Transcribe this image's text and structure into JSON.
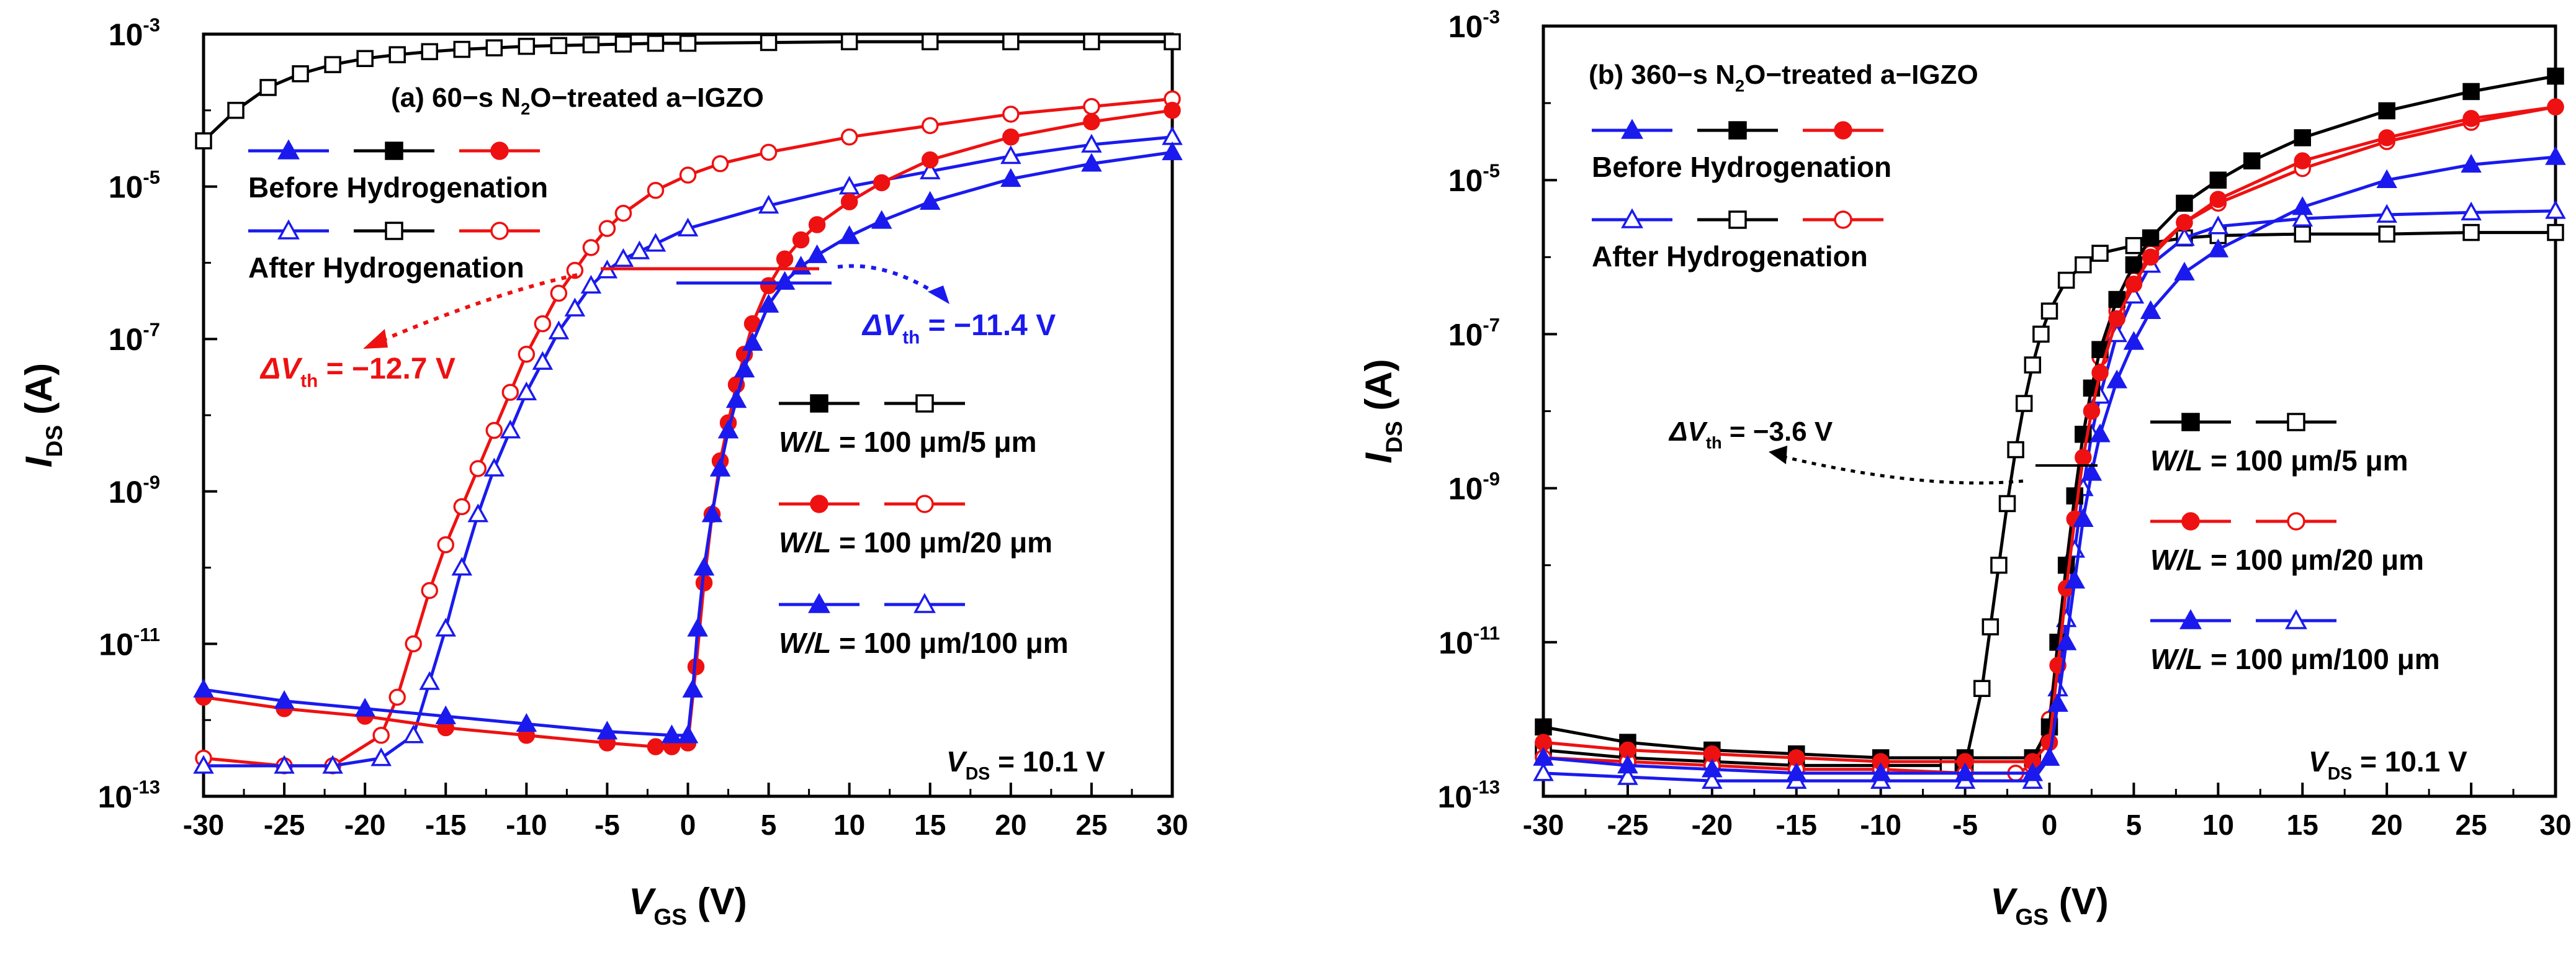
{
  "chart_data": [
    {
      "type": "line",
      "id": "a",
      "title": "(a) 60-s N₂O-treated a-IGZO",
      "title_parts": {
        "prefix": "(a) 60−s N",
        "sub": "2",
        "suffix": "O−treated  a−IGZO"
      },
      "xlabel": {
        "main": "V",
        "sub": "GS",
        "unit": " (V)"
      },
      "ylabel": {
        "main": "I",
        "sub": "DS",
        "unit": " (A)"
      },
      "xlim": [
        -30,
        30
      ],
      "ylim_log10": [
        -13,
        -3
      ],
      "xticks": [
        -30,
        -25,
        -20,
        -15,
        -10,
        -5,
        0,
        5,
        10,
        15,
        20,
        25,
        30
      ],
      "xtick_labels": [
        "-30",
        "-25",
        "-20",
        "-15",
        "-10",
        "-5",
        "0",
        "5",
        "10",
        "15",
        "20",
        "25",
        "30"
      ],
      "yticks": [
        {
          "base": "10",
          "exp": "-13",
          "value": -13
        },
        {
          "base": "10",
          "exp": "-11",
          "value": -11
        },
        {
          "base": "10",
          "exp": "-9",
          "value": -9
        },
        {
          "base": "10",
          "exp": "-7",
          "value": -7
        },
        {
          "base": "10",
          "exp": "-5",
          "value": -5
        },
        {
          "base": "10",
          "exp": "-3",
          "value": -3
        }
      ],
      "legend_before": "Before Hydrogenation",
      "legend_after": "After Hydrogenation",
      "wl_labels": [
        {
          "wl": "W/L",
          "rest": " = 100 μm/5 μm",
          "color": "#000000"
        },
        {
          "wl": "W/L",
          "rest": " = 100 μm/20 μm",
          "color": "#ee1111"
        },
        {
          "wl": "W/L",
          "rest": " = 100 μm/100 μm",
          "color": "#1a1aee"
        }
      ],
      "vds_label": {
        "main": "V",
        "sub": "DS",
        "rest": " = 10.1 V"
      },
      "annotations": [
        {
          "id": "dvth-red",
          "main": "ΔV",
          "sub": "th",
          "rest": " = −12.7 V",
          "color": "#ee1111"
        },
        {
          "id": "dvth-blue",
          "main": "ΔV",
          "sub": "th",
          "rest": " = −11.4 V",
          "color": "#1a1aee"
        }
      ],
      "series": [
        {
          "name": "100 μm/5 μm after",
          "color": "#000000",
          "marker": "square",
          "filled": false,
          "x": [
            -30,
            -28,
            -26,
            -24,
            -22,
            -20,
            -18,
            -16,
            -14,
            -12,
            -10,
            -8,
            -6,
            -4,
            -2,
            0,
            5,
            10,
            15,
            20,
            25,
            30
          ],
          "y_log10": [
            -4.4,
            -4.0,
            -3.7,
            -3.52,
            -3.4,
            -3.32,
            -3.27,
            -3.23,
            -3.2,
            -3.18,
            -3.16,
            -3.15,
            -3.14,
            -3.13,
            -3.12,
            -3.12,
            -3.11,
            -3.1,
            -3.1,
            -3.1,
            -3.1,
            -3.1
          ]
        },
        {
          "name": "100 μm/20 μm after",
          "color": "#ee1111",
          "marker": "circle",
          "filled": false,
          "x": [
            -30,
            -25,
            -22,
            -19,
            -18,
            -17,
            -16,
            -15,
            -14,
            -13,
            -12,
            -11,
            -10,
            -9,
            -8,
            -7,
            -6,
            -5,
            -4,
            -2,
            0,
            2,
            5,
            10,
            15,
            20,
            25,
            30
          ],
          "y_log10": [
            -12.5,
            -12.6,
            -12.6,
            -12.2,
            -11.7,
            -11.0,
            -10.3,
            -9.7,
            -9.2,
            -8.7,
            -8.2,
            -7.7,
            -7.2,
            -6.8,
            -6.4,
            -6.1,
            -5.8,
            -5.55,
            -5.35,
            -5.05,
            -4.85,
            -4.7,
            -4.55,
            -4.35,
            -4.2,
            -4.05,
            -3.95,
            -3.85
          ]
        },
        {
          "name": "100 μm/100 μm after",
          "color": "#1a1aee",
          "marker": "triangle",
          "filled": false,
          "x": [
            -30,
            -25,
            -22,
            -19,
            -17,
            -16,
            -15,
            -14,
            -13,
            -12,
            -11,
            -10,
            -9,
            -8,
            -7,
            -6,
            -5,
            -4,
            -3,
            -2,
            0,
            5,
            10,
            15,
            20,
            25,
            30
          ],
          "y_log10": [
            -12.6,
            -12.6,
            -12.6,
            -12.5,
            -12.2,
            -11.5,
            -10.8,
            -10.0,
            -9.3,
            -8.7,
            -8.2,
            -7.7,
            -7.3,
            -6.9,
            -6.6,
            -6.3,
            -6.1,
            -5.95,
            -5.85,
            -5.75,
            -5.55,
            -5.25,
            -5.0,
            -4.8,
            -4.6,
            -4.45,
            -4.35
          ]
        },
        {
          "name": "100 μm/5 μm before",
          "color": "#000000",
          "marker": "square",
          "filled": true,
          "x": [],
          "y_log10": []
        },
        {
          "name": "100 μm/20 μm before",
          "color": "#ee1111",
          "marker": "circle",
          "filled": true,
          "x": [
            -30,
            -25,
            -20,
            -15,
            -10,
            -5,
            -2,
            -1,
            0,
            0.5,
            1,
            1.5,
            2,
            2.5,
            3,
            3.5,
            4,
            5,
            6,
            7,
            8,
            10,
            12,
            15,
            20,
            25,
            30
          ],
          "y_log10": [
            -11.7,
            -11.85,
            -11.95,
            -12.1,
            -12.2,
            -12.3,
            -12.35,
            -12.35,
            -12.3,
            -11.3,
            -10.2,
            -9.3,
            -8.6,
            -8.1,
            -7.6,
            -7.2,
            -6.8,
            -6.3,
            -5.95,
            -5.7,
            -5.5,
            -5.2,
            -4.95,
            -4.65,
            -4.35,
            -4.15,
            -4.0
          ]
        },
        {
          "name": "100 μm/100 μm before",
          "color": "#1a1aee",
          "marker": "triangle",
          "filled": true,
          "x": [
            -30,
            -25,
            -20,
            -15,
            -10,
            -5,
            -1,
            0,
            0.3,
            0.6,
            1,
            1.5,
            2,
            2.5,
            3,
            3.5,
            4,
            5,
            6,
            7,
            8,
            10,
            12,
            15,
            20,
            25,
            30
          ],
          "y_log10": [
            -11.6,
            -11.75,
            -11.85,
            -11.95,
            -12.05,
            -12.15,
            -12.2,
            -12.2,
            -11.6,
            -10.8,
            -10.0,
            -9.3,
            -8.7,
            -8.2,
            -7.8,
            -7.4,
            -7.05,
            -6.55,
            -6.25,
            -6.05,
            -5.9,
            -5.65,
            -5.45,
            -5.2,
            -4.9,
            -4.7,
            -4.55
          ]
        }
      ]
    },
    {
      "type": "line",
      "id": "b",
      "title": "(b) 360-s N₂O-treated a-IGZO",
      "title_parts": {
        "prefix": "(b) 360−s N",
        "sub": "2",
        "suffix": "O−treated a−IGZO"
      },
      "xlabel": {
        "main": "V",
        "sub": "GS",
        "unit": " (V)"
      },
      "ylabel": {
        "main": "I",
        "sub": "DS",
        "unit": " (A)"
      },
      "xlim": [
        -30,
        30
      ],
      "ylim_log10": [
        -13,
        -3
      ],
      "xticks": [
        -30,
        -25,
        -20,
        -15,
        -10,
        -5,
        0,
        5,
        10,
        15,
        20,
        25,
        30
      ],
      "xtick_labels": [
        "-30",
        "-25",
        "-20",
        "-15",
        "-10",
        "-5",
        "0",
        "5",
        "10",
        "15",
        "20",
        "25",
        "30"
      ],
      "yticks": [
        {
          "base": "10",
          "exp": "-13",
          "value": -13
        },
        {
          "base": "10",
          "exp": "-11",
          "value": -11
        },
        {
          "base": "10",
          "exp": "-9",
          "value": -9
        },
        {
          "base": "10",
          "exp": "-7",
          "value": -7
        },
        {
          "base": "10",
          "exp": "-5",
          "value": -5
        },
        {
          "base": "10",
          "exp": "-3",
          "value": -3
        }
      ],
      "legend_before": "Before Hydrogenation",
      "legend_after": "After Hydrogenation",
      "wl_labels": [
        {
          "wl": "W/L",
          "rest": " = 100 μm/5 μm",
          "color": "#000000"
        },
        {
          "wl": "W/L",
          "rest": " = 100 μm/20 μm",
          "color": "#ee1111"
        },
        {
          "wl": "W/L",
          "rest": " = 100 μm/100 μm",
          "color": "#1a1aee"
        }
      ],
      "vds_label": {
        "main": "V",
        "sub": "DS",
        "rest": " = 10.1 V"
      },
      "annotations": [
        {
          "id": "dvth-black",
          "main": "ΔV",
          "sub": "th",
          "rest": " = −3.6 V",
          "color": "#000000"
        }
      ],
      "series": [
        {
          "name": "100 μm/5 μm after",
          "color": "#000000",
          "marker": "square",
          "filled": false,
          "x": [
            -30,
            -25,
            -20,
            -15,
            -10,
            -6,
            -5,
            -4,
            -3.5,
            -3,
            -2.5,
            -2,
            -1.5,
            -1,
            -0.5,
            0,
            1,
            2,
            3,
            5,
            8,
            10,
            15,
            20,
            25,
            30
          ],
          "y_log10": [
            -12.4,
            -12.5,
            -12.55,
            -12.6,
            -12.6,
            -12.6,
            -12.6,
            -11.6,
            -10.8,
            -10.0,
            -9.2,
            -8.5,
            -7.9,
            -7.4,
            -7.0,
            -6.7,
            -6.3,
            -6.1,
            -5.95,
            -5.85,
            -5.75,
            -5.72,
            -5.7,
            -5.7,
            -5.68,
            -5.68
          ]
        },
        {
          "name": "100 μm/20 μm after",
          "color": "#ee1111",
          "marker": "circle",
          "filled": false,
          "x": [
            -30,
            -25,
            -20,
            -15,
            -10,
            -5,
            -2,
            -1,
            0,
            0.5,
            1,
            1.5,
            2,
            2.5,
            3,
            4,
            5,
            6,
            8,
            10,
            15,
            20,
            25,
            30
          ],
          "y_log10": [
            -12.5,
            -12.55,
            -12.6,
            -12.65,
            -12.65,
            -12.7,
            -12.7,
            -12.6,
            -12.0,
            -11.0,
            -10.0,
            -9.1,
            -8.3,
            -7.7,
            -7.3,
            -6.7,
            -6.3,
            -5.95,
            -5.55,
            -5.3,
            -4.85,
            -4.5,
            -4.25,
            -4.05
          ]
        },
        {
          "name": "100 μm/100 μm after",
          "color": "#1a1aee",
          "marker": "triangle",
          "filled": false,
          "x": [
            -30,
            -25,
            -20,
            -15,
            -10,
            -5,
            -1,
            0,
            0.5,
            1,
            1.5,
            2,
            2.5,
            3,
            4,
            5,
            6,
            8,
            10,
            15,
            20,
            25,
            30
          ],
          "y_log10": [
            -12.7,
            -12.75,
            -12.8,
            -12.8,
            -12.8,
            -12.8,
            -12.8,
            -12.5,
            -11.6,
            -10.7,
            -9.8,
            -9.0,
            -8.3,
            -7.8,
            -7.0,
            -6.5,
            -6.1,
            -5.75,
            -5.6,
            -5.5,
            -5.45,
            -5.42,
            -5.4
          ]
        },
        {
          "name": "100 μm/5 μm before",
          "color": "#000000",
          "marker": "square",
          "filled": true,
          "x": [
            -30,
            -25,
            -20,
            -15,
            -10,
            -5,
            -1,
            0,
            0.5,
            1,
            1.5,
            2,
            2.5,
            3,
            4,
            5,
            6,
            8,
            10,
            12,
            15,
            20,
            25,
            30
          ],
          "y_log10": [
            -12.1,
            -12.3,
            -12.4,
            -12.45,
            -12.5,
            -12.5,
            -12.5,
            -12.1,
            -11.0,
            -10.0,
            -9.1,
            -8.3,
            -7.7,
            -7.2,
            -6.55,
            -6.1,
            -5.75,
            -5.3,
            -5.0,
            -4.75,
            -4.45,
            -4.1,
            -3.85,
            -3.65
          ]
        },
        {
          "name": "100 μm/20 μm before",
          "color": "#ee1111",
          "marker": "circle",
          "filled": true,
          "x": [
            -30,
            -25,
            -20,
            -15,
            -10,
            -5,
            -1,
            0,
            0.5,
            1,
            1.5,
            2,
            2.5,
            3,
            4,
            5,
            6,
            8,
            10,
            15,
            20,
            25,
            30
          ],
          "y_log10": [
            -12.3,
            -12.4,
            -12.45,
            -12.5,
            -12.55,
            -12.55,
            -12.55,
            -12.3,
            -11.3,
            -10.3,
            -9.4,
            -8.6,
            -8.0,
            -7.5,
            -6.8,
            -6.35,
            -6.0,
            -5.55,
            -5.25,
            -4.75,
            -4.45,
            -4.2,
            -4.05
          ]
        },
        {
          "name": "100 μm/100 μm before",
          "color": "#1a1aee",
          "marker": "triangle",
          "filled": true,
          "x": [
            -30,
            -25,
            -20,
            -15,
            -10,
            -5,
            -1,
            0,
            0.5,
            1,
            1.5,
            2,
            2.5,
            3,
            4,
            5,
            6,
            8,
            10,
            15,
            20,
            25,
            30
          ],
          "y_log10": [
            -12.5,
            -12.6,
            -12.65,
            -12.7,
            -12.7,
            -12.7,
            -12.7,
            -12.5,
            -11.8,
            -11.0,
            -10.2,
            -9.4,
            -8.8,
            -8.3,
            -7.6,
            -7.1,
            -6.7,
            -6.2,
            -5.9,
            -5.35,
            -5.0,
            -4.8,
            -4.7
          ]
        }
      ]
    }
  ]
}
